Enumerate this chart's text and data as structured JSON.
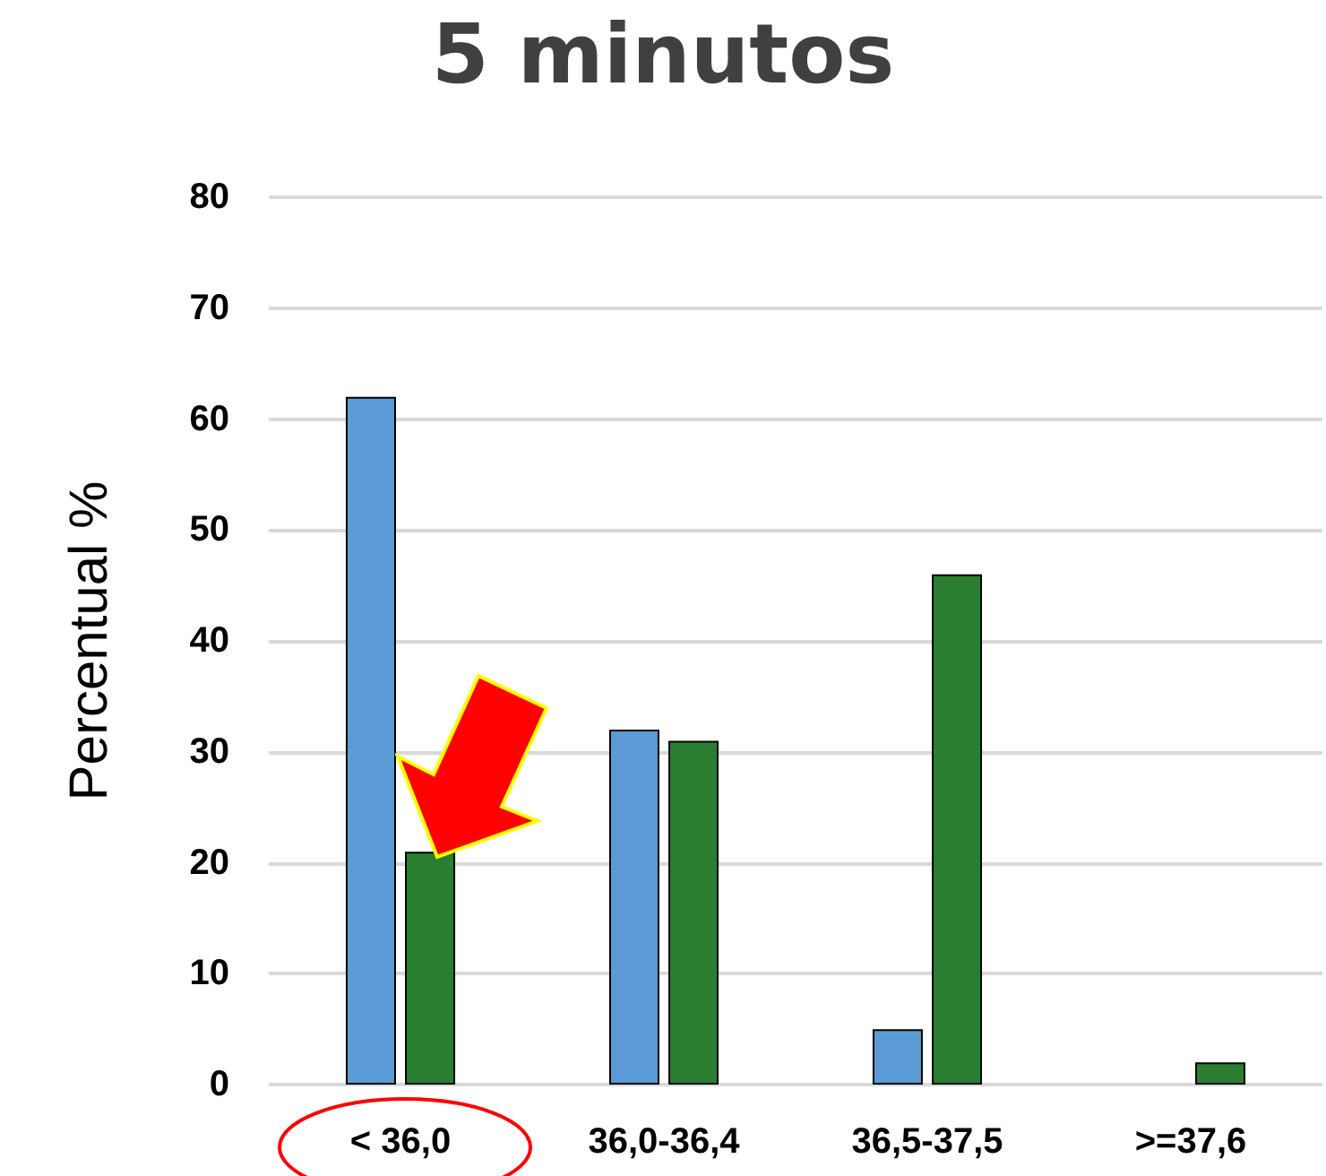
{
  "chart_data": {
    "type": "bar",
    "title": "5 minutos",
    "ylabel": "Percentual %",
    "categories": [
      "< 36,0",
      "36,0-36,4",
      "36,5-37,5",
      ">=37,6"
    ],
    "series": [
      {
        "color": "#5b9bd5",
        "values": [
          62,
          32,
          5,
          null
        ]
      },
      {
        "color": "#2a7e31",
        "values": [
          21,
          31,
          46,
          2
        ]
      }
    ],
    "ylim": [
      0,
      80
    ],
    "yticks": [
      0,
      10,
      20,
      30,
      40,
      50,
      60,
      70,
      80
    ],
    "grid": "y"
  }
}
